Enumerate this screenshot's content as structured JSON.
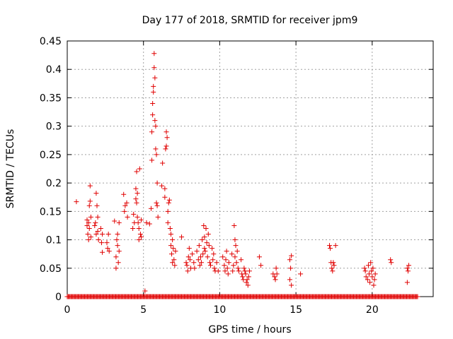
{
  "chart_data": {
    "type": "scatter",
    "title": "Day 177 of 2018, SRMTID for receiver jpm9",
    "xlabel": "GPS time / hours",
    "ylabel": "SRMTID / TECUs",
    "xlim": [
      0,
      24
    ],
    "ylim": [
      0,
      0.45
    ],
    "x_ticks": [
      "0",
      "5",
      "10",
      "15",
      "20"
    ],
    "y_ticks": [
      "0",
      "0.05",
      "0.1",
      "0.15",
      "0.2",
      "0.25",
      "0.3",
      "0.35",
      "0.4",
      "0.45"
    ],
    "grid": true,
    "marker": "+",
    "series": [
      {
        "name": "SRMTID",
        "color": "#e00000",
        "points": [
          [
            0.6,
            0.167
          ],
          [
            1.3,
            0.135
          ],
          [
            1.3,
            0.125
          ],
          [
            1.35,
            0.11
          ],
          [
            1.4,
            0.13
          ],
          [
            1.4,
            0.1
          ],
          [
            1.45,
            0.16
          ],
          [
            1.45,
            0.12
          ],
          [
            1.5,
            0.195
          ],
          [
            1.5,
            0.168
          ],
          [
            1.55,
            0.14
          ],
          [
            1.55,
            0.105
          ],
          [
            1.8,
            0.125
          ],
          [
            1.85,
            0.13
          ],
          [
            1.9,
            0.11
          ],
          [
            1.9,
            0.182
          ],
          [
            1.95,
            0.16
          ],
          [
            2.0,
            0.14
          ],
          [
            2.0,
            0.115
          ],
          [
            2.05,
            0.1
          ],
          [
            2.2,
            0.12
          ],
          [
            2.25,
            0.095
          ],
          [
            2.3,
            0.11
          ],
          [
            2.3,
            0.078
          ],
          [
            2.6,
            0.095
          ],
          [
            2.65,
            0.085
          ],
          [
            2.7,
            0.11
          ],
          [
            2.75,
            0.08
          ],
          [
            3.1,
            0.133
          ],
          [
            3.2,
            0.07
          ],
          [
            3.2,
            0.05
          ],
          [
            3.25,
            0.1
          ],
          [
            3.3,
            0.09
          ],
          [
            3.3,
            0.11
          ],
          [
            3.35,
            0.06
          ],
          [
            3.4,
            0.13
          ],
          [
            3.4,
            0.08
          ],
          [
            3.7,
            0.18
          ],
          [
            3.75,
            0.15
          ],
          [
            3.8,
            0.16
          ],
          [
            3.9,
            0.165
          ],
          [
            3.95,
            0.14
          ],
          [
            4.3,
            0.12
          ],
          [
            4.35,
            0.145
          ],
          [
            4.4,
            0.13
          ],
          [
            4.5,
            0.172
          ],
          [
            4.5,
            0.19
          ],
          [
            4.55,
            0.22
          ],
          [
            4.55,
            0.165
          ],
          [
            4.6,
            0.182
          ],
          [
            4.6,
            0.14
          ],
          [
            4.65,
            0.13
          ],
          [
            4.7,
            0.12
          ],
          [
            4.7,
            0.1
          ],
          [
            4.75,
            0.225
          ],
          [
            4.8,
            0.11
          ],
          [
            4.85,
            0.105
          ],
          [
            4.85,
            0.135
          ],
          [
            5.1,
            0.01
          ],
          [
            5.2,
            0.13
          ],
          [
            5.4,
            0.128
          ],
          [
            5.5,
            0.155
          ],
          [
            5.55,
            0.24
          ],
          [
            5.55,
            0.29
          ],
          [
            5.6,
            0.32
          ],
          [
            5.6,
            0.34
          ],
          [
            5.65,
            0.36
          ],
          [
            5.65,
            0.37
          ],
          [
            5.7,
            0.403
          ],
          [
            5.7,
            0.428
          ],
          [
            5.75,
            0.385
          ],
          [
            5.75,
            0.31
          ],
          [
            5.8,
            0.3
          ],
          [
            5.8,
            0.26
          ],
          [
            5.85,
            0.25
          ],
          [
            5.85,
            0.165
          ],
          [
            5.9,
            0.2
          ],
          [
            5.9,
            0.16
          ],
          [
            5.95,
            0.14
          ],
          [
            6.2,
            0.195
          ],
          [
            6.25,
            0.235
          ],
          [
            6.4,
            0.19
          ],
          [
            6.4,
            0.175
          ],
          [
            6.45,
            0.26
          ],
          [
            6.5,
            0.29
          ],
          [
            6.5,
            0.265
          ],
          [
            6.55,
            0.28
          ],
          [
            6.6,
            0.15
          ],
          [
            6.6,
            0.13
          ],
          [
            6.65,
            0.165
          ],
          [
            6.7,
            0.17
          ],
          [
            6.75,
            0.12
          ],
          [
            6.8,
            0.11
          ],
          [
            6.8,
            0.09
          ],
          [
            6.85,
            0.075
          ],
          [
            6.9,
            0.1
          ],
          [
            6.9,
            0.06
          ],
          [
            6.95,
            0.085
          ],
          [
            7.0,
            0.065
          ],
          [
            7.05,
            0.055
          ],
          [
            7.1,
            0.08
          ],
          [
            7.5,
            0.105
          ],
          [
            7.8,
            0.06
          ],
          [
            7.85,
            0.055
          ],
          [
            7.9,
            0.045
          ],
          [
            7.95,
            0.07
          ],
          [
            8.0,
            0.085
          ],
          [
            8.05,
            0.065
          ],
          [
            8.1,
            0.05
          ],
          [
            8.2,
            0.075
          ],
          [
            8.3,
            0.06
          ],
          [
            8.35,
            0.05
          ],
          [
            8.5,
            0.08
          ],
          [
            8.6,
            0.065
          ],
          [
            8.65,
            0.09
          ],
          [
            8.7,
            0.055
          ],
          [
            8.75,
            0.07
          ],
          [
            8.8,
            0.06
          ],
          [
            8.85,
            0.1
          ],
          [
            8.9,
            0.075
          ],
          [
            8.95,
            0.125
          ],
          [
            9.0,
            0.105
          ],
          [
            9.0,
            0.085
          ],
          [
            9.05,
            0.08
          ],
          [
            9.1,
            0.12
          ],
          [
            9.15,
            0.095
          ],
          [
            9.2,
            0.07
          ],
          [
            9.25,
            0.11
          ],
          [
            9.3,
            0.09
          ],
          [
            9.35,
            0.06
          ],
          [
            9.4,
            0.055
          ],
          [
            9.5,
            0.085
          ],
          [
            9.55,
            0.065
          ],
          [
            9.6,
            0.075
          ],
          [
            9.65,
            0.05
          ],
          [
            9.7,
            0.045
          ],
          [
            9.8,
            0.06
          ],
          [
            9.9,
            0.045
          ],
          [
            10.2,
            0.07
          ],
          [
            10.3,
            0.055
          ],
          [
            10.35,
            0.045
          ],
          [
            10.4,
            0.065
          ],
          [
            10.45,
            0.08
          ],
          [
            10.5,
            0.05
          ],
          [
            10.55,
            0.04
          ],
          [
            10.6,
            0.06
          ],
          [
            10.8,
            0.075
          ],
          [
            10.85,
            0.045
          ],
          [
            10.9,
            0.055
          ],
          [
            10.95,
            0.125
          ],
          [
            11.0,
            0.1
          ],
          [
            11.0,
            0.07
          ],
          [
            11.05,
            0.09
          ],
          [
            11.1,
            0.06
          ],
          [
            11.15,
            0.08
          ],
          [
            11.2,
            0.05
          ],
          [
            11.25,
            0.045
          ],
          [
            11.4,
            0.065
          ],
          [
            11.45,
            0.04
          ],
          [
            11.5,
            0.035
          ],
          [
            11.55,
            0.03
          ],
          [
            11.6,
            0.05
          ],
          [
            11.65,
            0.045
          ],
          [
            11.7,
            0.04
          ],
          [
            11.75,
            0.025
          ],
          [
            11.8,
            0.03
          ],
          [
            11.85,
            0.02
          ],
          [
            11.9,
            0.035
          ],
          [
            11.95,
            0.045
          ],
          [
            12.6,
            0.07
          ],
          [
            12.7,
            0.055
          ],
          [
            13.5,
            0.04
          ],
          [
            13.6,
            0.035
          ],
          [
            13.65,
            0.03
          ],
          [
            13.7,
            0.05
          ],
          [
            13.75,
            0.04
          ],
          [
            14.6,
            0.065
          ],
          [
            14.65,
            0.05
          ],
          [
            14.7,
            0.072
          ],
          [
            14.6,
            0.03
          ],
          [
            14.7,
            0.02
          ],
          [
            15.3,
            0.04
          ],
          [
            17.2,
            0.09
          ],
          [
            17.25,
            0.085
          ],
          [
            17.3,
            0.06
          ],
          [
            17.35,
            0.05
          ],
          [
            17.4,
            0.045
          ],
          [
            17.45,
            0.06
          ],
          [
            17.5,
            0.055
          ],
          [
            17.6,
            0.09
          ],
          [
            19.5,
            0.05
          ],
          [
            19.55,
            0.045
          ],
          [
            19.6,
            0.035
          ],
          [
            19.7,
            0.03
          ],
          [
            19.75,
            0.055
          ],
          [
            19.8,
            0.04
          ],
          [
            19.85,
            0.025
          ],
          [
            19.9,
            0.06
          ],
          [
            19.95,
            0.045
          ],
          [
            20.0,
            0.035
          ],
          [
            20.05,
            0.05
          ],
          [
            20.1,
            0.02
          ],
          [
            20.15,
            0.03
          ],
          [
            20.2,
            0.04
          ],
          [
            21.2,
            0.065
          ],
          [
            21.25,
            0.06
          ],
          [
            22.3,
            0.05
          ],
          [
            22.35,
            0.045
          ],
          [
            22.4,
            0.055
          ],
          [
            22.3,
            0.025
          ]
        ],
        "baseline_range": [
          0,
          23
        ],
        "baseline_value": 0
      }
    ]
  }
}
